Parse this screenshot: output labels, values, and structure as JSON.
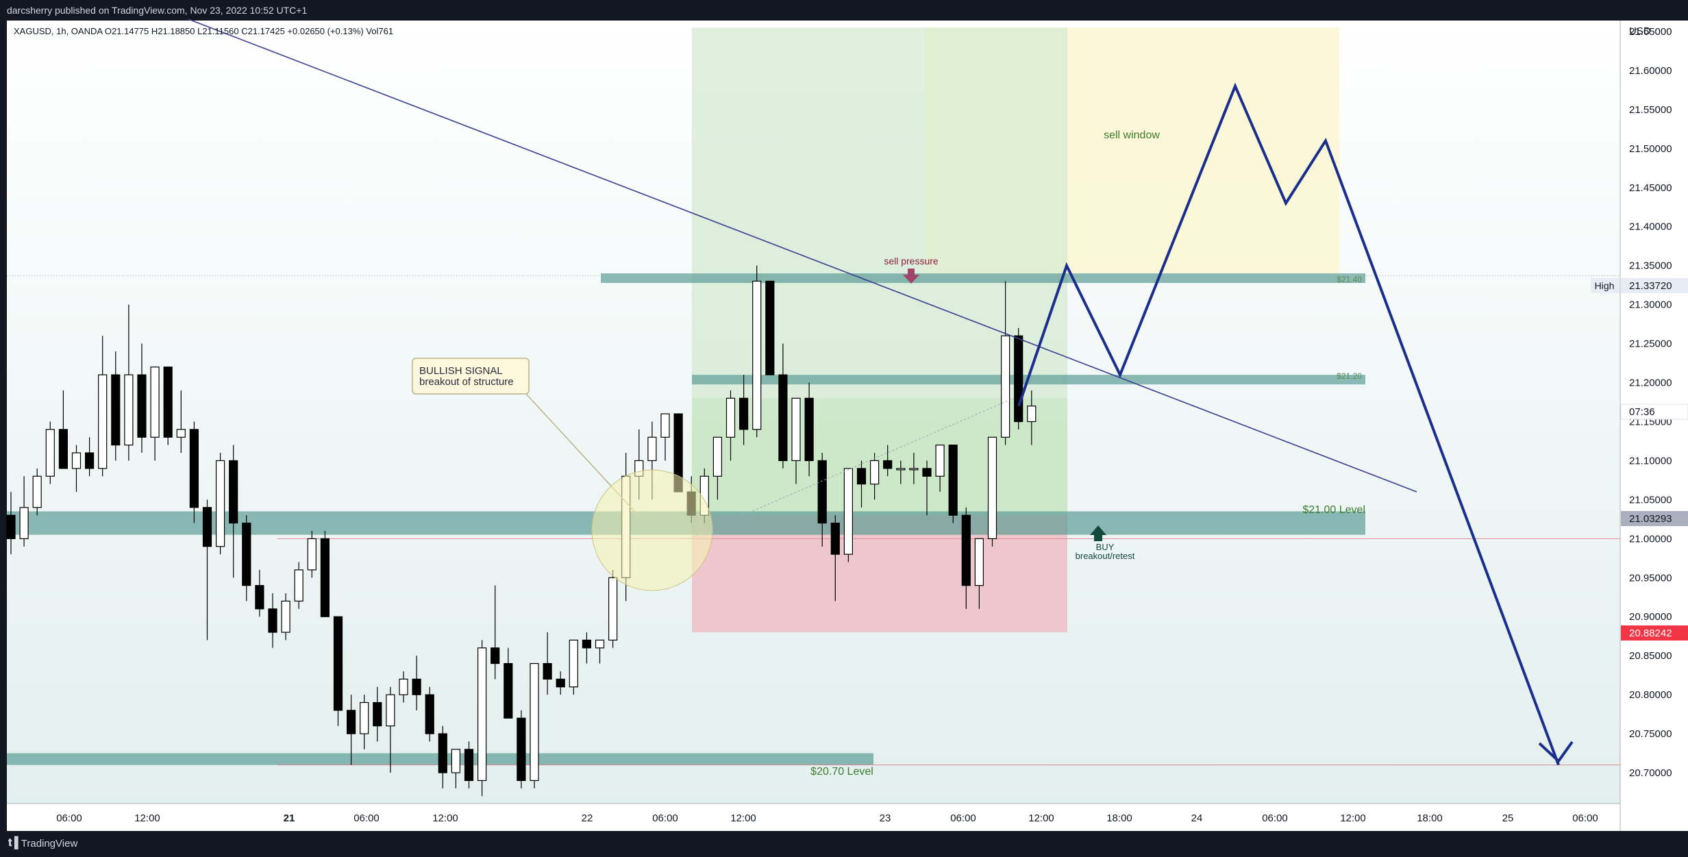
{
  "header": {
    "published": "darcsherry published on TradingView.com, Nov 23, 2022 10:52 UTC+1"
  },
  "legend": {
    "symbol_line": "XAGUSD, 1h, OANDA  O21.14775  H21.18850  L21.11560  C21.17425  +0.02650 (+0.13%)  Vol761"
  },
  "price_axis": {
    "currency": "USD",
    "ticks": [
      "21.65000",
      "21.60000",
      "21.55000",
      "21.50000",
      "21.45000",
      "21.40000",
      "21.35000",
      "21.30000",
      "21.25000",
      "21.20000",
      "21.15000",
      "21.10000",
      "21.05000",
      "21.00000",
      "20.95000",
      "20.90000",
      "20.85000",
      "20.80000",
      "20.75000",
      "20.70000"
    ],
    "high_label": "High",
    "high_value": "21.33720",
    "countdown": "07:36",
    "current_value": "21.03293",
    "last_value": "20.88242"
  },
  "time_axis": {
    "ticks": [
      {
        "label": "06:00",
        "bold": false
      },
      {
        "label": "12:00",
        "bold": false
      },
      {
        "label": "21",
        "bold": true
      },
      {
        "label": "06:00",
        "bold": false
      },
      {
        "label": "12:00",
        "bold": false
      },
      {
        "label": "22",
        "bold": false
      },
      {
        "label": "06:00",
        "bold": false
      },
      {
        "label": "12:00",
        "bold": false
      },
      {
        "label": "23",
        "bold": false
      },
      {
        "label": "06:00",
        "bold": false
      },
      {
        "label": "12:00",
        "bold": false
      },
      {
        "label": "18:00",
        "bold": false
      },
      {
        "label": "24",
        "bold": false
      },
      {
        "label": "06:00",
        "bold": false
      },
      {
        "label": "12:00",
        "bold": false
      },
      {
        "label": "18:00",
        "bold": false
      },
      {
        "label": "25",
        "bold": false
      },
      {
        "label": "06:00",
        "bold": false
      }
    ]
  },
  "annotations": {
    "bullish_title": "BULLISH SIGNAL",
    "bullish_sub": "breakout of structure",
    "sell_pressure": "sell pressure",
    "sell_window": "sell window",
    "buy": "BUY",
    "buy_sub": "breakout/retest",
    "level_2140": "$21.40",
    "level_2120": "$21.20",
    "level_2100": "$21.00 Level",
    "level_2070": "$20.70 Level"
  },
  "footer": {
    "brand": "TradingView"
  },
  "colors": {
    "background": "#131722",
    "up_candle": "#ffffff",
    "down_candle": "#000000",
    "trend_line": "#3a3f8f",
    "projection": "#1a2f8c",
    "zone_band": "#6fa9a5",
    "red_price_tag": "#f23645"
  },
  "chart_data": {
    "type": "candlestick",
    "symbol": "XAGUSD",
    "timeframe": "1h",
    "exchange": "OANDA",
    "ylim": [
      20.675,
      21.675
    ],
    "levels": [
      21.4,
      21.2,
      21.0,
      20.7
    ],
    "zones": [
      {
        "name": "$21.40",
        "from": 21.33,
        "to": 21.34
      },
      {
        "name": "$21.20",
        "from": 21.2,
        "to": 21.21
      },
      {
        "name": "$21.00 Level",
        "from": 21.005,
        "to": 21.035
      },
      {
        "name": "$20.70 Level",
        "from": 20.71,
        "to": 20.725
      }
    ],
    "candles": [
      {
        "o": 21.03,
        "h": 21.06,
        "l": 20.98,
        "c": 21.0
      },
      {
        "o": 21.0,
        "h": 21.08,
        "l": 20.99,
        "c": 21.04
      },
      {
        "o": 21.04,
        "h": 21.09,
        "l": 21.03,
        "c": 21.08
      },
      {
        "o": 21.08,
        "h": 21.15,
        "l": 21.07,
        "c": 21.14
      },
      {
        "o": 21.14,
        "h": 21.19,
        "l": 21.09,
        "c": 21.09
      },
      {
        "o": 21.09,
        "h": 21.12,
        "l": 21.06,
        "c": 21.11
      },
      {
        "o": 21.11,
        "h": 21.13,
        "l": 21.08,
        "c": 21.09
      },
      {
        "o": 21.09,
        "h": 21.26,
        "l": 21.08,
        "c": 21.21
      },
      {
        "o": 21.21,
        "h": 21.24,
        "l": 21.1,
        "c": 21.12
      },
      {
        "o": 21.12,
        "h": 21.3,
        "l": 21.1,
        "c": 21.21
      },
      {
        "o": 21.21,
        "h": 21.25,
        "l": 21.11,
        "c": 21.13
      },
      {
        "o": 21.13,
        "h": 21.22,
        "l": 21.1,
        "c": 21.22
      },
      {
        "o": 21.22,
        "h": 21.22,
        "l": 21.12,
        "c": 21.13
      },
      {
        "o": 21.13,
        "h": 21.19,
        "l": 21.11,
        "c": 21.14
      },
      {
        "o": 21.14,
        "h": 21.15,
        "l": 21.02,
        "c": 21.04
      },
      {
        "o": 21.04,
        "h": 21.05,
        "l": 20.87,
        "c": 20.99
      },
      {
        "o": 20.99,
        "h": 21.11,
        "l": 20.98,
        "c": 21.1
      },
      {
        "o": 21.1,
        "h": 21.12,
        "l": 20.95,
        "c": 21.02
      },
      {
        "o": 21.02,
        "h": 21.03,
        "l": 20.92,
        "c": 20.94
      },
      {
        "o": 20.94,
        "h": 20.96,
        "l": 20.9,
        "c": 20.91
      },
      {
        "o": 20.91,
        "h": 20.93,
        "l": 20.86,
        "c": 20.88
      },
      {
        "o": 20.88,
        "h": 20.93,
        "l": 20.87,
        "c": 20.92
      },
      {
        "o": 20.92,
        "h": 20.97,
        "l": 20.91,
        "c": 20.96
      },
      {
        "o": 20.96,
        "h": 21.01,
        "l": 20.95,
        "c": 21.0
      },
      {
        "o": 21.0,
        "h": 21.01,
        "l": 20.9,
        "c": 20.9
      },
      {
        "o": 20.9,
        "h": 20.9,
        "l": 20.76,
        "c": 20.78
      },
      {
        "o": 20.78,
        "h": 20.8,
        "l": 20.71,
        "c": 20.75
      },
      {
        "o": 20.75,
        "h": 20.8,
        "l": 20.73,
        "c": 20.79
      },
      {
        "o": 20.79,
        "h": 20.81,
        "l": 20.74,
        "c": 20.76
      },
      {
        "o": 20.76,
        "h": 20.81,
        "l": 20.7,
        "c": 20.8
      },
      {
        "o": 20.8,
        "h": 20.83,
        "l": 20.79,
        "c": 20.82
      },
      {
        "o": 20.82,
        "h": 20.85,
        "l": 20.78,
        "c": 20.8
      },
      {
        "o": 20.8,
        "h": 20.81,
        "l": 20.74,
        "c": 20.75
      },
      {
        "o": 20.75,
        "h": 20.76,
        "l": 20.68,
        "c": 20.7
      },
      {
        "o": 20.7,
        "h": 20.73,
        "l": 20.68,
        "c": 20.73
      },
      {
        "o": 20.73,
        "h": 20.74,
        "l": 20.68,
        "c": 20.69
      },
      {
        "o": 20.69,
        "h": 20.87,
        "l": 20.67,
        "c": 20.86
      },
      {
        "o": 20.86,
        "h": 20.94,
        "l": 20.82,
        "c": 20.84
      },
      {
        "o": 20.84,
        "h": 20.86,
        "l": 20.77,
        "c": 20.77
      },
      {
        "o": 20.77,
        "h": 20.78,
        "l": 20.68,
        "c": 20.69
      },
      {
        "o": 20.69,
        "h": 20.84,
        "l": 20.68,
        "c": 20.84
      },
      {
        "o": 20.84,
        "h": 20.88,
        "l": 20.8,
        "c": 20.82
      },
      {
        "o": 20.82,
        "h": 20.83,
        "l": 20.8,
        "c": 20.81
      },
      {
        "o": 20.81,
        "h": 20.87,
        "l": 20.8,
        "c": 20.87
      },
      {
        "o": 20.87,
        "h": 20.88,
        "l": 20.84,
        "c": 20.86
      },
      {
        "o": 20.86,
        "h": 20.87,
        "l": 20.84,
        "c": 20.87
      },
      {
        "o": 20.87,
        "h": 20.96,
        "l": 20.86,
        "c": 20.95
      },
      {
        "o": 20.95,
        "h": 21.11,
        "l": 20.92,
        "c": 21.08
      },
      {
        "o": 21.08,
        "h": 21.14,
        "l": 21.05,
        "c": 21.1
      },
      {
        "o": 21.1,
        "h": 21.15,
        "l": 21.05,
        "c": 21.13
      },
      {
        "o": 21.13,
        "h": 21.16,
        "l": 21.1,
        "c": 21.16
      },
      {
        "o": 21.16,
        "h": 21.16,
        "l": 21.06,
        "c": 21.06
      },
      {
        "o": 21.06,
        "h": 21.08,
        "l": 21.02,
        "c": 21.03
      },
      {
        "o": 21.03,
        "h": 21.09,
        "l": 21.02,
        "c": 21.08
      },
      {
        "o": 21.08,
        "h": 21.12,
        "l": 21.05,
        "c": 21.13
      },
      {
        "o": 21.13,
        "h": 21.19,
        "l": 21.1,
        "c": 21.18
      },
      {
        "o": 21.18,
        "h": 21.21,
        "l": 21.12,
        "c": 21.14
      },
      {
        "o": 21.14,
        "h": 21.35,
        "l": 21.13,
        "c": 21.33
      },
      {
        "o": 21.33,
        "h": 21.33,
        "l": 21.21,
        "c": 21.21
      },
      {
        "o": 21.21,
        "h": 21.25,
        "l": 21.09,
        "c": 21.1
      },
      {
        "o": 21.1,
        "h": 21.18,
        "l": 21.07,
        "c": 21.18
      },
      {
        "o": 21.18,
        "h": 21.2,
        "l": 21.08,
        "c": 21.1
      },
      {
        "o": 21.1,
        "h": 21.11,
        "l": 20.99,
        "c": 21.02
      },
      {
        "o": 21.02,
        "h": 21.03,
        "l": 20.92,
        "c": 20.98
      },
      {
        "o": 20.98,
        "h": 21.09,
        "l": 20.97,
        "c": 21.09
      },
      {
        "o": 21.09,
        "h": 21.1,
        "l": 21.04,
        "c": 21.07
      },
      {
        "o": 21.07,
        "h": 21.11,
        "l": 21.05,
        "c": 21.1
      },
      {
        "o": 21.1,
        "h": 21.12,
        "l": 21.08,
        "c": 21.09
      },
      {
        "o": 21.09,
        "h": 21.1,
        "l": 21.07,
        "c": 21.09
      },
      {
        "o": 21.09,
        "h": 21.11,
        "l": 21.07,
        "c": 21.09
      },
      {
        "o": 21.09,
        "h": 21.1,
        "l": 21.03,
        "c": 21.08
      },
      {
        "o": 21.08,
        "h": 21.12,
        "l": 21.06,
        "c": 21.12
      },
      {
        "o": 21.12,
        "h": 21.12,
        "l": 21.02,
        "c": 21.03
      },
      {
        "o": 21.03,
        "h": 21.04,
        "l": 20.91,
        "c": 20.94
      },
      {
        "o": 20.94,
        "h": 21.0,
        "l": 20.91,
        "c": 21.0
      },
      {
        "o": 21.0,
        "h": 21.13,
        "l": 20.99,
        "c": 21.13
      },
      {
        "o": 21.13,
        "h": 21.33,
        "l": 21.12,
        "c": 21.26
      },
      {
        "o": 21.26,
        "h": 21.27,
        "l": 21.14,
        "c": 21.15
      },
      {
        "o": 21.15,
        "h": 21.19,
        "l": 21.12,
        "c": 21.17
      }
    ],
    "trendlines": [
      {
        "name": "descending-trendline",
        "points": [
          [
            "2022-11-20 12:00",
            21.69
          ],
          [
            "2022-11-24 10:00",
            21.06
          ]
        ]
      }
    ],
    "projection_path": [
      21.17,
      21.35,
      21.21,
      21.58,
      21.43,
      21.51,
      20.71
    ],
    "shaded_regions": [
      {
        "name": "long-position-profit",
        "from": 21.03,
        "to": 21.18
      },
      {
        "name": "long-position-stop",
        "from": 20.88,
        "to": 21.03
      },
      {
        "name": "sell-window",
        "from": 21.34,
        "to": 21.655
      },
      {
        "name": "green-context",
        "from": 21.18,
        "to": 21.655
      }
    ]
  }
}
